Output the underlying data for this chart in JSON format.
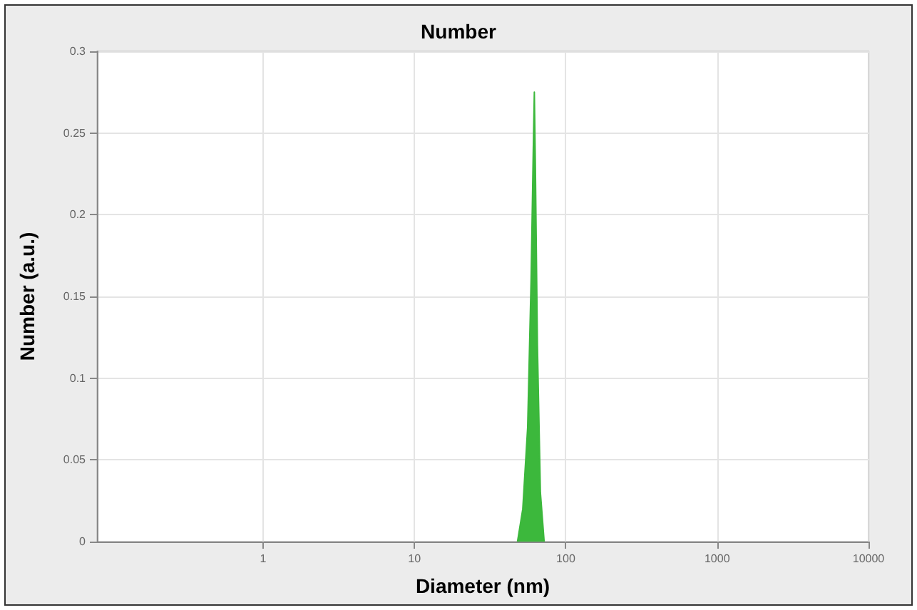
{
  "chart_data": {
    "type": "area",
    "title": "Number",
    "xlabel": "Diameter (nm)",
    "ylabel": "Number (a.u.)",
    "series": [
      {
        "color": "#3cb83c",
        "x": [
          48,
          52,
          56,
          59,
          61,
          62,
          63,
          65,
          68,
          72
        ],
        "values": [
          0,
          0.02,
          0.07,
          0.16,
          0.24,
          0.275,
          0.23,
          0.12,
          0.03,
          0
        ]
      }
    ],
    "log": "x",
    "xlim": [
      0.08,
      10000
    ],
    "xticks": [
      1,
      10,
      100,
      1000,
      10000
    ],
    "ylim": [
      0,
      0.3
    ],
    "yticks": [
      0,
      0.05,
      0.1,
      0.15,
      0.2,
      0.25,
      0.3
    ],
    "grid": true
  }
}
